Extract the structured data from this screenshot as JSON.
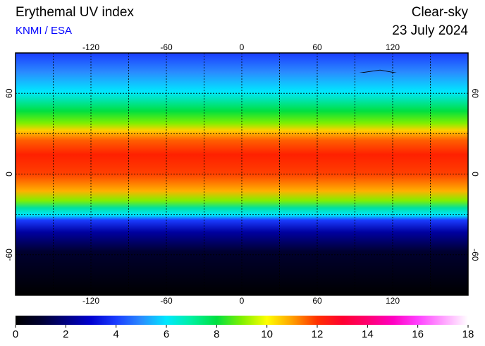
{
  "title": "Erythemal UV index",
  "source": "KNMI / ESA",
  "condition": "Clear-sky",
  "date": "23 July 2024",
  "map": {
    "lon_range": [
      -180,
      180
    ],
    "lat_range": [
      -90,
      90
    ],
    "lon_ticks": [
      -120,
      -60,
      0,
      60,
      120
    ],
    "lat_ticks": [
      60,
      0,
      -60
    ],
    "lon_grid": [
      -150,
      -120,
      -90,
      -60,
      -30,
      0,
      30,
      60,
      90,
      120,
      150
    ],
    "lat_grid": [
      60,
      30,
      0,
      -30,
      -60
    ]
  },
  "colorbar": {
    "range": [
      0,
      18
    ],
    "ticks": [
      0,
      2,
      4,
      6,
      8,
      10,
      12,
      14,
      16,
      18
    ],
    "colors": [
      "#000000",
      "#000030",
      "#000080",
      "#0000d0",
      "#1a3cff",
      "#2a8cff",
      "#00e8ff",
      "#00f0a0",
      "#00e040",
      "#80f000",
      "#ffff00",
      "#ffa000",
      "#ff3000",
      "#ff0030",
      "#ff0070",
      "#ff00c0",
      "#ff40ff",
      "#ffa0ff",
      "#ffffff"
    ]
  }
}
